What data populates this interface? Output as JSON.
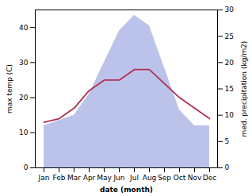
{
  "chart_data": {
    "type": "combo",
    "xlabel": "date (month)",
    "ylabel": "max temp (C)",
    "y2label": "med. precipitation (kg/m2)",
    "categories": [
      "Jan",
      "Feb",
      "Mar",
      "Apr",
      "May",
      "Jun",
      "Jul",
      "Aug",
      "Sep",
      "Oct",
      "Nov",
      "Dec"
    ],
    "series": [
      {
        "type": "area",
        "axis": "y2",
        "color": "#b0b8e8",
        "values": [
          8,
          9,
          10,
          14,
          20,
          26,
          29,
          27,
          19,
          11,
          8,
          8
        ]
      },
      {
        "type": "line",
        "color": "#b03050",
        "values": [
          13,
          14,
          17,
          22,
          25,
          25,
          28,
          28,
          24,
          20,
          17,
          14
        ]
      }
    ],
    "ylim": [
      0,
      45
    ],
    "yticks": [
      0,
      10,
      20,
      30,
      40
    ],
    "y2lim": [
      0,
      30
    ],
    "y2ticks": [
      0,
      5,
      10,
      15,
      20,
      25,
      30
    ]
  }
}
